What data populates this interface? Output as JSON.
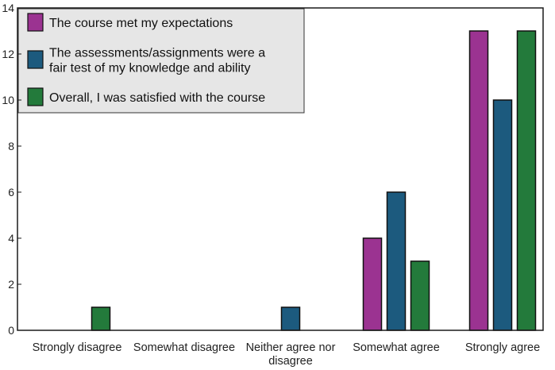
{
  "chart_data": {
    "type": "bar",
    "categories": [
      [
        "Strongly disagree"
      ],
      [
        "Somewhat disagree"
      ],
      [
        "Neither agree nor",
        "disagree"
      ],
      [
        "Somewhat agree"
      ],
      [
        "Strongly agree"
      ]
    ],
    "series": [
      {
        "name": [
          "The course met my expectations"
        ],
        "color": "#9b3391",
        "values": [
          0,
          0,
          0,
          4,
          13
        ]
      },
      {
        "name": [
          "The assessments/assignments were a",
          "fair test of my knowledge and ability"
        ],
        "color": "#1c5a7e",
        "values": [
          0,
          0,
          1,
          6,
          10
        ]
      },
      {
        "name": [
          "Overall, I was satisfied with the course"
        ],
        "color": "#237a3b",
        "values": [
          1,
          0,
          0,
          3,
          13
        ]
      }
    ],
    "ylim": [
      0,
      14
    ],
    "yticks": [
      0,
      2,
      4,
      6,
      8,
      10,
      12,
      14
    ],
    "legend_position": "top-left",
    "grid": false
  }
}
